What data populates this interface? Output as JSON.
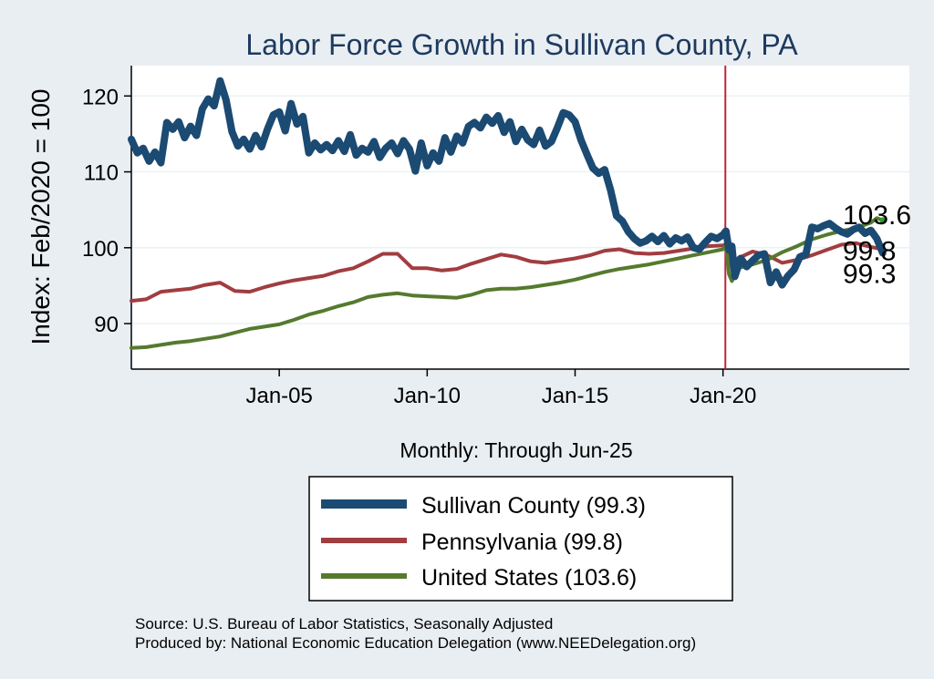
{
  "chart_data": {
    "type": "line",
    "title": "Labor Force Growth in Sullivan  County, PA",
    "ylabel": "Index: Feb/2020 = 100",
    "xlabel": "Monthly: Through Jun-25",
    "xlim": [
      2000.0,
      2026.3
    ],
    "ylim": [
      84,
      124
    ],
    "x_ticks": [
      {
        "value": 2005.0,
        "label": "Jan-05"
      },
      {
        "value": 2010.0,
        "label": "Jan-10"
      },
      {
        "value": 2015.0,
        "label": "Jan-15"
      },
      {
        "value": 2020.0,
        "label": "Jan-20"
      }
    ],
    "y_ticks": [
      90,
      100,
      110,
      120
    ],
    "reference_line": {
      "x": 2020.08,
      "color": "#c0243f"
    },
    "grid": true,
    "legend_placement": "bottom",
    "series": [
      {
        "name": "Sullivan  County (99.3)",
        "color": "#1b4a73",
        "width": 8,
        "x": [
          2000.0,
          2000.2,
          2000.4,
          2000.6,
          2000.8,
          2001.0,
          2001.2,
          2001.4,
          2001.6,
          2001.8,
          2002.0,
          2002.2,
          2002.4,
          2002.6,
          2002.8,
          2003.0,
          2003.2,
          2003.4,
          2003.6,
          2003.8,
          2004.0,
          2004.2,
          2004.4,
          2004.6,
          2004.8,
          2005.0,
          2005.2,
          2005.4,
          2005.6,
          2005.8,
          2006.0,
          2006.2,
          2006.4,
          2006.6,
          2006.8,
          2007.0,
          2007.2,
          2007.4,
          2007.6,
          2007.8,
          2008.0,
          2008.2,
          2008.4,
          2008.6,
          2008.8,
          2009.0,
          2009.2,
          2009.4,
          2009.6,
          2009.8,
          2010.0,
          2010.2,
          2010.4,
          2010.6,
          2010.8,
          2011.0,
          2011.2,
          2011.4,
          2011.6,
          2011.8,
          2012.0,
          2012.2,
          2012.4,
          2012.6,
          2012.8,
          2013.0,
          2013.2,
          2013.4,
          2013.6,
          2013.8,
          2014.0,
          2014.2,
          2014.4,
          2014.6,
          2014.8,
          2015.0,
          2015.2,
          2015.4,
          2015.6,
          2015.8,
          2016.0,
          2016.2,
          2016.4,
          2016.6,
          2016.8,
          2017.0,
          2017.2,
          2017.4,
          2017.6,
          2017.8,
          2018.0,
          2018.2,
          2018.4,
          2018.6,
          2018.8,
          2019.0,
          2019.2,
          2019.4,
          2019.6,
          2019.8,
          2020.0,
          2020.1,
          2020.2,
          2020.3,
          2020.4,
          2020.6,
          2020.8,
          2021.0,
          2021.2,
          2021.4,
          2021.6,
          2021.8,
          2022.0,
          2022.2,
          2022.4,
          2022.6,
          2022.8,
          2023.0,
          2023.2,
          2023.4,
          2023.6,
          2023.8,
          2024.0,
          2024.2,
          2024.4,
          2024.6,
          2024.8,
          2025.0,
          2025.2,
          2025.4
        ],
        "values": [
          114.3,
          112.5,
          113.1,
          111.4,
          112.6,
          111.2,
          116.5,
          115.6,
          116.6,
          114.5,
          116.0,
          114.8,
          118.3,
          119.6,
          118.7,
          122.0,
          119.5,
          115.3,
          113.4,
          114.3,
          113.0,
          114.8,
          113.3,
          115.6,
          117.5,
          117.9,
          115.4,
          119.0,
          116.3,
          117.3,
          112.5,
          113.8,
          112.9,
          113.6,
          112.8,
          114.1,
          112.7,
          114.9,
          112.2,
          113.1,
          112.6,
          114.0,
          111.9,
          113.1,
          113.8,
          112.4,
          114.1,
          113.0,
          110.1,
          113.8,
          110.8,
          112.5,
          111.4,
          114.5,
          112.6,
          114.7,
          113.8,
          116.0,
          116.5,
          115.8,
          117.2,
          116.4,
          117.4,
          115.2,
          116.6,
          114.0,
          115.6,
          114.2,
          113.6,
          115.5,
          113.4,
          114.0,
          115.8,
          117.8,
          117.5,
          116.6,
          114.2,
          112.3,
          110.5,
          109.8,
          110.3,
          107.6,
          104.2,
          103.5,
          102.1,
          101.2,
          100.6,
          100.9,
          101.5,
          100.8,
          101.6,
          100.5,
          101.3,
          100.9,
          101.4,
          100.0,
          99.8,
          100.7,
          101.5,
          101.2,
          101.7,
          102.2,
          99.7,
          100.2,
          96.2,
          98.6,
          97.5,
          98.3,
          99.0,
          99.2,
          95.4,
          96.8,
          95.1,
          96.3,
          97.1,
          98.8,
          99.1,
          102.7,
          102.5,
          102.9,
          103.2,
          102.6,
          102.1,
          101.8,
          102.4,
          102.7,
          101.9,
          102.3,
          101.2,
          99.3
        ]
      },
      {
        "name": "Pennsylvania (99.8)",
        "color": "#a13d40",
        "width": 4,
        "x": [
          2000.0,
          2000.5,
          2001.0,
          2001.5,
          2002.0,
          2002.5,
          2003.0,
          2003.5,
          2004.0,
          2004.5,
          2005.0,
          2005.5,
          2006.0,
          2006.5,
          2007.0,
          2007.5,
          2008.0,
          2008.5,
          2009.0,
          2009.5,
          2010.0,
          2010.5,
          2011.0,
          2011.5,
          2012.0,
          2012.5,
          2013.0,
          2013.5,
          2014.0,
          2014.5,
          2015.0,
          2015.5,
          2016.0,
          2016.5,
          2017.0,
          2017.5,
          2018.0,
          2018.5,
          2019.0,
          2019.5,
          2020.0,
          2020.1,
          2020.2,
          2020.3,
          2020.5,
          2021.0,
          2021.5,
          2022.0,
          2022.5,
          2023.0,
          2023.5,
          2024.0,
          2024.5,
          2025.0,
          2025.4
        ],
        "values": [
          93.0,
          93.2,
          94.2,
          94.4,
          94.6,
          95.1,
          95.4,
          94.3,
          94.2,
          94.8,
          95.3,
          95.7,
          96.0,
          96.3,
          96.9,
          97.3,
          98.2,
          99.2,
          99.2,
          97.3,
          97.3,
          97.0,
          97.2,
          97.9,
          98.5,
          99.1,
          98.8,
          98.2,
          98.0,
          98.3,
          98.6,
          99.0,
          99.6,
          99.8,
          99.3,
          99.2,
          99.3,
          99.6,
          99.9,
          100.2,
          100.3,
          100.5,
          99.2,
          97.4,
          98.6,
          99.5,
          99.0,
          98.0,
          98.4,
          99.0,
          99.7,
          100.4,
          100.6,
          100.1,
          99.8
        ]
      },
      {
        "name": "United States (103.6)",
        "color": "#557a2e",
        "width": 4,
        "x": [
          2000.0,
          2000.5,
          2001.0,
          2001.5,
          2002.0,
          2002.5,
          2003.0,
          2003.5,
          2004.0,
          2004.5,
          2005.0,
          2005.5,
          2006.0,
          2006.5,
          2007.0,
          2007.5,
          2008.0,
          2008.5,
          2009.0,
          2009.5,
          2010.0,
          2010.5,
          2011.0,
          2011.5,
          2012.0,
          2012.5,
          2013.0,
          2013.5,
          2014.0,
          2014.5,
          2015.0,
          2015.5,
          2016.0,
          2016.5,
          2017.0,
          2017.5,
          2018.0,
          2018.5,
          2019.0,
          2019.5,
          2020.0,
          2020.1,
          2020.2,
          2020.3,
          2020.5,
          2021.0,
          2021.5,
          2022.0,
          2022.5,
          2023.0,
          2023.5,
          2024.0,
          2024.5,
          2025.0,
          2025.2,
          2025.4
        ],
        "values": [
          86.8,
          86.9,
          87.2,
          87.5,
          87.7,
          88.0,
          88.3,
          88.8,
          89.3,
          89.6,
          89.9,
          90.5,
          91.2,
          91.7,
          92.3,
          92.8,
          93.5,
          93.8,
          94.0,
          93.7,
          93.6,
          93.5,
          93.4,
          93.8,
          94.4,
          94.6,
          94.6,
          94.8,
          95.1,
          95.4,
          95.8,
          96.3,
          96.8,
          97.2,
          97.5,
          97.8,
          98.2,
          98.6,
          99.0,
          99.4,
          99.8,
          100.3,
          96.5,
          95.6,
          97.3,
          97.8,
          98.4,
          99.4,
          100.2,
          101.1,
          101.7,
          102.2,
          102.6,
          103.3,
          103.9,
          103.6
        ]
      }
    ],
    "end_labels": [
      "103.6",
      "99.8",
      "99.3"
    ],
    "legend": [
      "Sullivan  County (99.3)",
      "Pennsylvania (99.8)",
      "United States (103.6)"
    ],
    "notes": [
      "Source: U.S. Bureau of Labor Statistics, Seasonally Adjusted",
      "Produced by: National Economic Education Delegation (www.NEEDelegation.org)"
    ]
  }
}
